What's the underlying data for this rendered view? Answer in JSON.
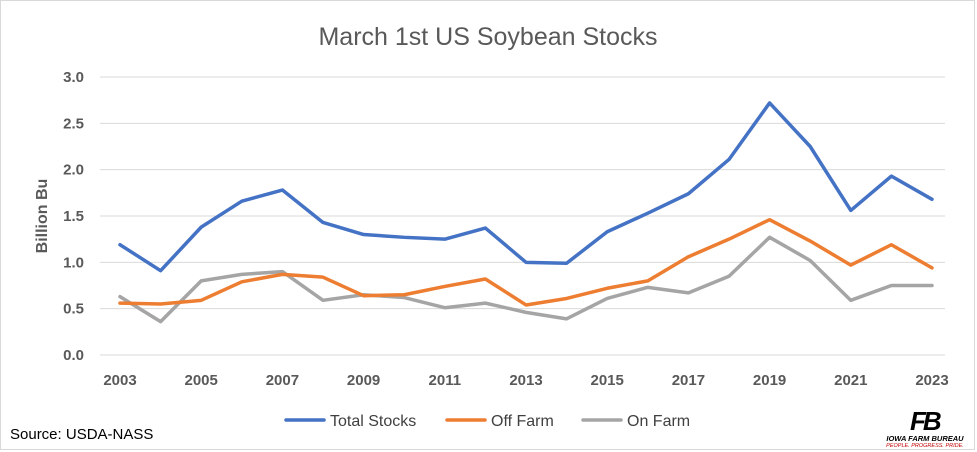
{
  "chart_data": {
    "type": "line",
    "title": "March 1st US Soybean Stocks",
    "xlabel": "",
    "ylabel": "Billion Bu",
    "x": [
      2003,
      2004,
      2005,
      2006,
      2007,
      2008,
      2009,
      2010,
      2011,
      2012,
      2013,
      2014,
      2015,
      2016,
      2017,
      2018,
      2019,
      2020,
      2021,
      2022,
      2023
    ],
    "x_tick_labels": [
      "2003",
      "2005",
      "2007",
      "2009",
      "2011",
      "2013",
      "2015",
      "2017",
      "2019",
      "2021",
      "2023"
    ],
    "y_tick_labels": [
      "0.0",
      "0.5",
      "1.0",
      "1.5",
      "2.0",
      "2.5",
      "3.0"
    ],
    "ylim": [
      0,
      3.0
    ],
    "grid": "horizontal",
    "legend": "bottom",
    "series": [
      {
        "name": "Total Stocks",
        "color": "#4472c4",
        "values": [
          1.19,
          0.91,
          1.38,
          1.66,
          1.78,
          1.43,
          1.3,
          1.27,
          1.25,
          1.37,
          1.0,
          0.99,
          1.33,
          1.53,
          1.74,
          2.11,
          2.72,
          2.25,
          1.56,
          1.93,
          1.68
        ]
      },
      {
        "name": "Off Farm",
        "color": "#ed7d31",
        "values": [
          0.56,
          0.55,
          0.59,
          0.79,
          0.87,
          0.84,
          0.64,
          0.65,
          0.74,
          0.82,
          0.54,
          0.61,
          0.72,
          0.8,
          1.06,
          1.25,
          1.46,
          1.23,
          0.97,
          1.19,
          0.94
        ]
      },
      {
        "name": "On Farm",
        "color": "#a5a5a5",
        "values": [
          0.63,
          0.36,
          0.8,
          0.87,
          0.9,
          0.59,
          0.65,
          0.62,
          0.51,
          0.56,
          0.46,
          0.39,
          0.61,
          0.73,
          0.67,
          0.85,
          1.27,
          1.02,
          0.59,
          0.75,
          0.75
        ]
      }
    ]
  },
  "source": "Source: USDA-NASS",
  "logo": {
    "mark": "FB",
    "name": "IOWA FARM BUREAU",
    "tagline": "PEOPLE. PROGRESS. PRIDE."
  },
  "colors": {
    "grid": "#d9d9d9",
    "text": "#595959"
  }
}
